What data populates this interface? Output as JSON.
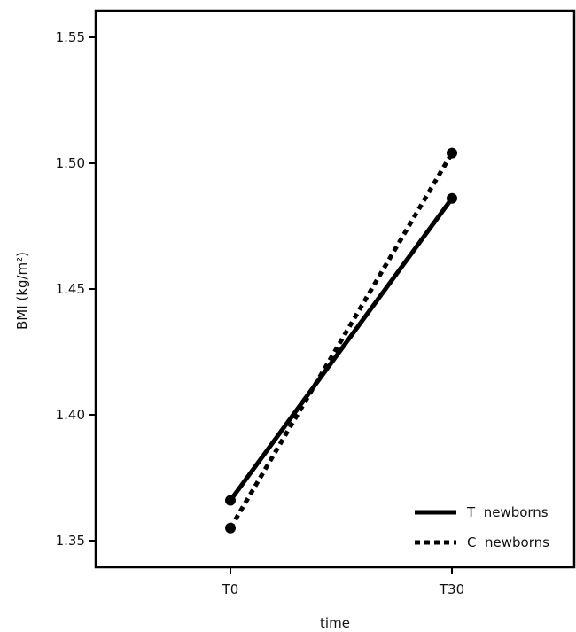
{
  "chart_data": {
    "type": "line",
    "categories": [
      "T0",
      "T30"
    ],
    "xlabel": "time",
    "ylabel": "BMI (kg/m²)",
    "ylim": [
      1.33,
      1.56
    ],
    "yticks": [
      1.35,
      1.4,
      1.45,
      1.5,
      1.55
    ],
    "ytick_labels": [
      "1.35",
      "1.40",
      "1.45",
      "1.50",
      "1.55"
    ],
    "legend_position": "bottom-right",
    "series": [
      {
        "name": "T  newborns",
        "values": [
          1.366,
          1.486
        ],
        "style": "solid",
        "color": "#000000"
      },
      {
        "name": "C  newborns",
        "values": [
          1.355,
          1.504
        ],
        "style": "dotted",
        "color": "#000000"
      }
    ]
  }
}
